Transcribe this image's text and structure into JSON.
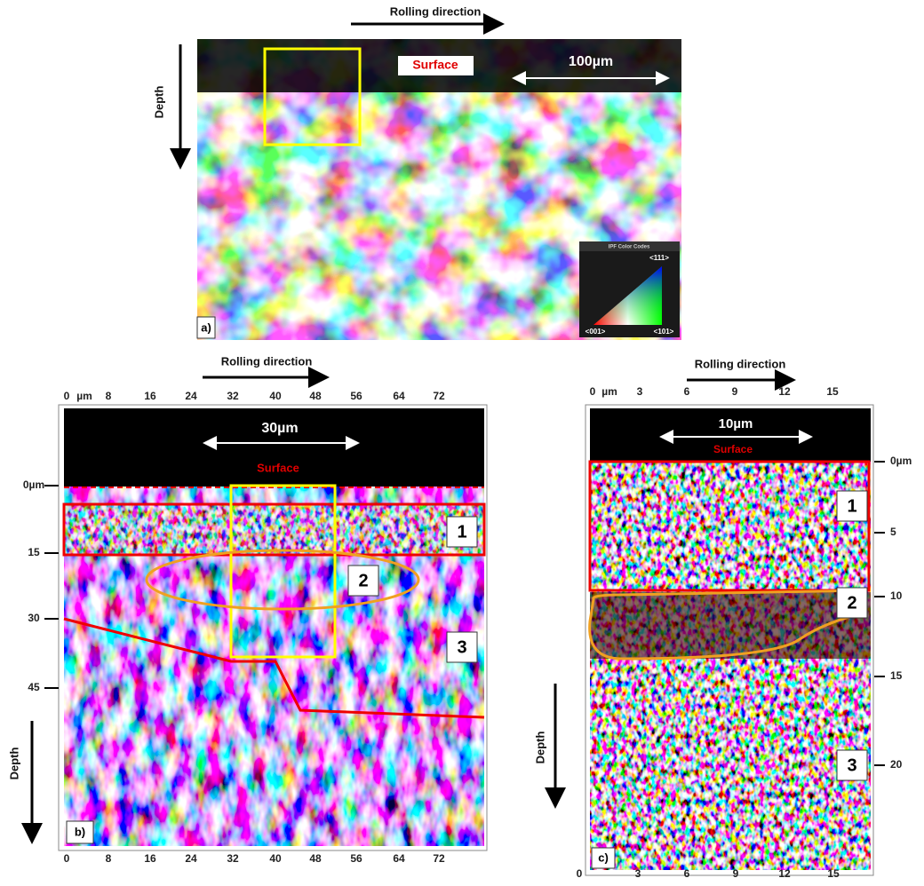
{
  "panel_a": {
    "rolling_direction": "Rolling direction",
    "depth": "Depth",
    "surface": "Surface",
    "scale_bar": "100µm",
    "legend": {
      "title": "IPF Color Codes",
      "top": "<111>",
      "left": "<001>",
      "right": "<101>"
    },
    "label": "a)"
  },
  "panel_b": {
    "rolling_direction": "Rolling direction",
    "depth": "Depth",
    "surface": "Surface",
    "scale_bar": "30µm",
    "top_ticks": [
      "0",
      "µm",
      "8",
      "16",
      "24",
      "32",
      "40",
      "48",
      "56",
      "64",
      "72"
    ],
    "bottom_ticks": [
      "0",
      "8",
      "16",
      "24",
      "32",
      "40",
      "48",
      "56",
      "64",
      "72"
    ],
    "depth_ticks": [
      "0µm",
      "15",
      "30",
      "45"
    ],
    "regions": [
      "1",
      "2",
      "3"
    ],
    "label": "b)"
  },
  "panel_c": {
    "rolling_direction": "Rolling direction",
    "depth": "Depth",
    "surface": "Surface",
    "scale_bar": "10µm",
    "top_ticks": [
      "0",
      "µm",
      "3",
      "6",
      "9",
      "12",
      "15"
    ],
    "bottom_ticks": [
      "0",
      "3",
      "6",
      "9",
      "12",
      "15"
    ],
    "depth_ticks": [
      "0µm",
      "5",
      "10",
      "15",
      "20"
    ],
    "regions": [
      "1",
      "2",
      "3"
    ],
    "label": "c)"
  }
}
